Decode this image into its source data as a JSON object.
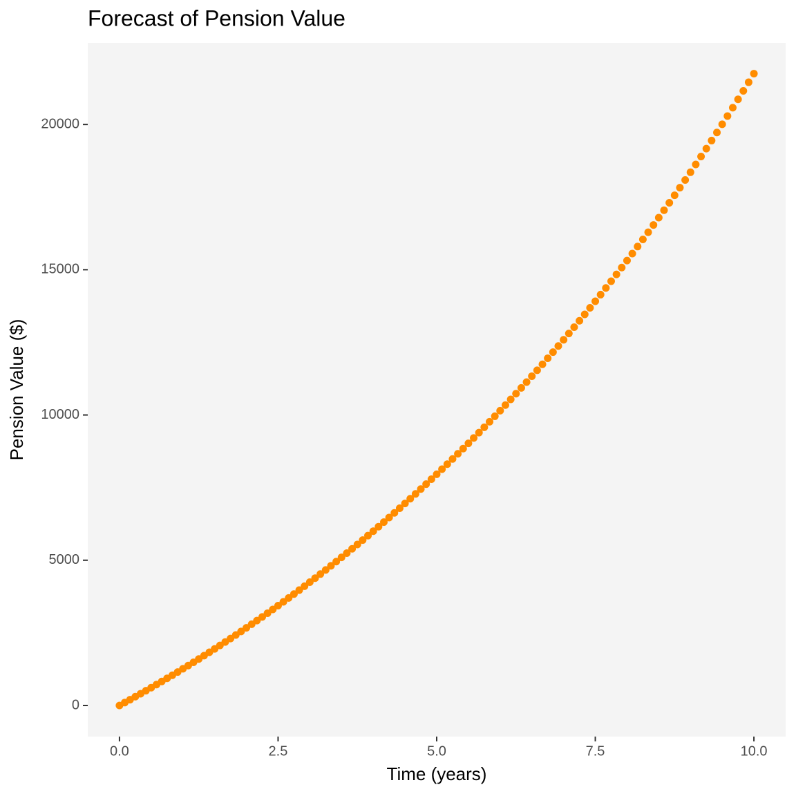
{
  "chart_data": {
    "type": "scatter",
    "title": "Forecast of Pension Value",
    "x_label": "Time (years)",
    "y_label": "Pension Value ($)",
    "color": "#ff8c00",
    "grid": false,
    "xlim": [
      -0.5,
      10.5
    ],
    "ylim": [
      -1070,
      22810
    ],
    "xticks": [
      {
        "value": 0,
        "label": "0.0"
      },
      2.5,
      {
        "value": 5,
        "label": "5.0"
      },
      7.5,
      {
        "value": 10,
        "label": "10.0"
      }
    ],
    "yticks": [
      0,
      5000,
      10000,
      15000,
      20000
    ],
    "x": [
      0,
      0.0833,
      0.1667,
      0.25,
      0.3333,
      0.4167,
      0.5,
      0.5833,
      0.6667,
      0.75,
      0.8333,
      0.9167,
      1,
      1.0833,
      1.1667,
      1.25,
      1.3333,
      1.4167,
      1.5,
      1.5833,
      1.6667,
      1.75,
      1.8333,
      1.9167,
      2,
      2.0833,
      2.1667,
      2.25,
      2.3333,
      2.4167,
      2.5,
      2.5833,
      2.6667,
      2.75,
      2.8333,
      2.9167,
      3,
      3.0833,
      3.1667,
      3.25,
      3.3333,
      3.4167,
      3.5,
      3.5833,
      3.6667,
      3.75,
      3.8333,
      3.9167,
      4,
      4.0833,
      4.1667,
      4.25,
      4.3333,
      4.4167,
      4.5,
      4.5833,
      4.6667,
      4.75,
      4.8333,
      4.9167,
      5,
      5.0833,
      5.1667,
      5.25,
      5.3333,
      5.4167,
      5.5,
      5.5833,
      5.6667,
      5.75,
      5.8333,
      5.9167,
      6,
      6.0833,
      6.1667,
      6.25,
      6.3333,
      6.4167,
      6.5,
      6.5833,
      6.6667,
      6.75,
      6.8333,
      6.9167,
      7,
      7.0833,
      7.1667,
      7.25,
      7.3333,
      7.4167,
      7.5,
      7.5833,
      7.6667,
      7.75,
      7.8333,
      7.9167,
      8,
      8.0833,
      8.1667,
      8.25,
      8.3333,
      8.4167,
      8.5,
      8.5833,
      8.6667,
      8.75,
      8.8333,
      8.9167,
      9,
      9.0833,
      9.1667,
      9.25,
      9.3333,
      9.4167,
      9.5,
      9.5833,
      9.6667,
      9.75,
      9.8333,
      9.9167,
      10
    ],
    "values": [
      0,
      100,
      201,
      303,
      406,
      509,
      614,
      720,
      826,
      934,
      1042,
      1152,
      1263,
      1374,
      1487,
      1601,
      1715,
      1831,
      1948,
      2066,
      2185,
      2305,
      2426,
      2548,
      2672,
      2797,
      2922,
      3049,
      3177,
      3306,
      3437,
      3568,
      3701,
      3835,
      3971,
      4107,
      4245,
      4384,
      4524,
      4666,
      4809,
      4953,
      5099,
      5246,
      5394,
      5543,
      5694,
      5847,
      6001,
      6156,
      6312,
      6471,
      6630,
      6791,
      6954,
      7118,
      7283,
      7450,
      7619,
      7789,
      7960,
      8134,
      8308,
      8485,
      8663,
      8843,
      9024,
      9207,
      9392,
      9578,
      9766,
      9956,
      10148,
      10341,
      10536,
      10733,
      10932,
      11132,
      11335,
      11539,
      11745,
      11953,
      12163,
      12375,
      12589,
      12805,
      13023,
      13242,
      13464,
      13688,
      13914,
      14142,
      14372,
      14604,
      14839,
      15075,
      15314,
      15555,
      15798,
      16043,
      16291,
      16541,
      16793,
      17047,
      17304,
      17563,
      17825,
      18089,
      18355,
      18624,
      18896,
      19169,
      19446,
      19725,
      20006,
      20290,
      20577,
      20866,
      21158,
      21453,
      21750
    ]
  }
}
